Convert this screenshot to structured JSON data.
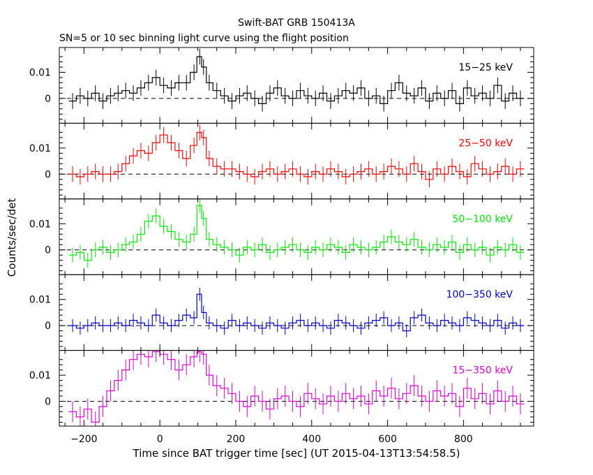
{
  "chart_data": {
    "type": "line",
    "title": "Swift-BAT GRB 150413A",
    "subtitle": "SN=5 or 10 sec binning light curve using the flight position",
    "xlabel": "Time since BAT trigger time [sec] (UT 2015-04-13T13:54:58.5)",
    "ylabel": "Counts/sec/det",
    "xlim": [
      -265,
      985
    ],
    "ylim": [
      -0.0095,
      0.0195
    ],
    "x_ticks": [
      "−200",
      "0",
      "200",
      "400",
      "600",
      "800"
    ],
    "x_tick_values": [
      -200,
      0,
      200,
      400,
      600,
      800
    ],
    "y_ticks": [
      "0",
      "0.01"
    ],
    "y_tick_values": [
      0,
      0.01
    ],
    "grid": false,
    "series": [
      {
        "name": "15−25 keV",
        "color": "#000000",
        "x": [
          -230,
          -210,
          -190,
          -170,
          -150,
          -130,
          -110,
          -90,
          -70,
          -50,
          -30,
          -10,
          10,
          30,
          50,
          70,
          90,
          105,
          115,
          130,
          150,
          170,
          190,
          210,
          230,
          250,
          270,
          290,
          310,
          330,
          350,
          370,
          390,
          410,
          430,
          450,
          470,
          490,
          510,
          530,
          550,
          570,
          590,
          610,
          630,
          650,
          670,
          690,
          710,
          730,
          750,
          770,
          790,
          810,
          830,
          850,
          870,
          890,
          910,
          930,
          950
        ],
        "y": [
          -0.001,
          0.001,
          0.0,
          0.002,
          -0.001,
          0.001,
          0.002,
          0.003,
          0.002,
          0.004,
          0.006,
          0.008,
          0.005,
          0.004,
          0.006,
          0.006,
          0.01,
          0.016,
          0.012,
          0.006,
          0.003,
          0.001,
          -0.001,
          0.001,
          0.002,
          0.0,
          -0.002,
          0.002,
          0.004,
          0.001,
          0.0,
          0.003,
          0.001,
          0.0,
          0.002,
          -0.001,
          0.001,
          0.003,
          0.002,
          0.004,
          0.0,
          0.001,
          -0.002,
          0.003,
          0.006,
          0.002,
          0.001,
          0.004,
          -0.001,
          0.002,
          0.0,
          0.003,
          -0.002,
          0.004,
          0.001,
          0.002,
          0.0,
          0.005,
          -0.001,
          0.002,
          0.0
        ],
        "err": 0.003
      },
      {
        "name": "25−50 keV",
        "color": "#ff0000",
        "x": [
          -230,
          -210,
          -190,
          -170,
          -150,
          -130,
          -110,
          -90,
          -70,
          -50,
          -30,
          -10,
          10,
          30,
          50,
          70,
          90,
          105,
          115,
          130,
          150,
          170,
          190,
          210,
          230,
          250,
          270,
          290,
          310,
          330,
          350,
          370,
          390,
          410,
          430,
          450,
          470,
          490,
          510,
          530,
          550,
          570,
          590,
          610,
          630,
          650,
          670,
          690,
          710,
          730,
          750,
          770,
          790,
          810,
          830,
          850,
          870,
          890,
          910,
          930,
          950
        ],
        "y": [
          0.0,
          -0.001,
          0.0,
          0.001,
          0.0,
          0.0,
          0.001,
          0.004,
          0.007,
          0.009,
          0.008,
          0.012,
          0.015,
          0.012,
          0.009,
          0.006,
          0.011,
          0.016,
          0.014,
          0.006,
          0.003,
          0.002,
          0.002,
          0.001,
          0.0,
          -0.001,
          0.001,
          0.002,
          0.0,
          0.001,
          0.002,
          0.0,
          -0.001,
          0.001,
          0.0,
          0.002,
          0.001,
          -0.001,
          0.0,
          0.001,
          0.002,
          0.0,
          0.001,
          0.003,
          0.002,
          0.0,
          0.004,
          0.001,
          -0.002,
          0.002,
          0.0,
          0.003,
          0.001,
          -0.001,
          0.004,
          0.002,
          0.0,
          0.001,
          0.003,
          0.0,
          0.002
        ],
        "err": 0.003
      },
      {
        "name": "50−100 keV",
        "color": "#00ee00",
        "x": [
          -230,
          -210,
          -190,
          -170,
          -150,
          -130,
          -110,
          -90,
          -70,
          -50,
          -30,
          -10,
          10,
          30,
          50,
          70,
          90,
          105,
          115,
          130,
          150,
          170,
          190,
          210,
          230,
          250,
          270,
          290,
          310,
          330,
          350,
          370,
          390,
          410,
          430,
          450,
          470,
          490,
          510,
          530,
          550,
          570,
          590,
          610,
          630,
          650,
          670,
          690,
          710,
          730,
          750,
          770,
          790,
          810,
          830,
          850,
          870,
          890,
          910,
          930,
          950
        ],
        "y": [
          -0.002,
          -0.001,
          -0.004,
          0.0,
          0.001,
          -0.001,
          0.0,
          0.002,
          0.003,
          0.006,
          0.011,
          0.013,
          0.009,
          0.007,
          0.004,
          0.003,
          0.006,
          0.017,
          0.012,
          0.004,
          0.002,
          0.001,
          0.0,
          -0.002,
          0.001,
          0.0,
          0.002,
          -0.001,
          0.0,
          0.001,
          0.002,
          0.0,
          -0.001,
          0.001,
          0.0,
          0.002,
          0.001,
          -0.001,
          0.002,
          0.001,
          0.0,
          0.001,
          0.003,
          0.005,
          0.003,
          0.002,
          0.004,
          0.001,
          0.0,
          0.002,
          0.001,
          0.003,
          -0.001,
          0.002,
          0.0,
          0.001,
          -0.002,
          0.001,
          0.0,
          0.002,
          -0.001
        ],
        "err": 0.0028
      },
      {
        "name": "100−350 keV",
        "color": "#0000cc",
        "x": [
          -230,
          -210,
          -190,
          -170,
          -150,
          -130,
          -110,
          -90,
          -70,
          -50,
          -30,
          -10,
          10,
          30,
          50,
          70,
          90,
          105,
          115,
          130,
          150,
          170,
          190,
          210,
          230,
          250,
          270,
          290,
          310,
          330,
          350,
          370,
          390,
          410,
          430,
          450,
          470,
          490,
          510,
          530,
          550,
          570,
          590,
          610,
          630,
          650,
          670,
          690,
          710,
          730,
          750,
          770,
          790,
          810,
          830,
          850,
          870,
          890,
          910,
          930,
          950
        ],
        "y": [
          0.0,
          -0.001,
          0.0,
          0.001,
          0.0,
          0.0,
          0.001,
          0.0,
          0.002,
          0.001,
          0.0,
          0.004,
          0.001,
          0.0,
          0.002,
          0.004,
          0.003,
          0.012,
          0.005,
          0.001,
          0.0,
          -0.001,
          0.002,
          0.0,
          0.001,
          0.0,
          -0.001,
          0.001,
          0.0,
          -0.001,
          0.001,
          0.002,
          0.0,
          0.001,
          0.0,
          -0.001,
          0.002,
          0.001,
          0.0,
          -0.001,
          0.001,
          0.002,
          0.003,
          0.0,
          0.001,
          -0.002,
          0.003,
          0.004,
          0.001,
          0.0,
          0.002,
          0.001,
          0.0,
          0.003,
          0.002,
          0.001,
          0.0,
          0.002,
          -0.001,
          0.001,
          0.0
        ],
        "err": 0.0025
      },
      {
        "name": "15−350 keV",
        "color": "#dd00dd",
        "x": [
          -230,
          -210,
          -190,
          -170,
          -150,
          -130,
          -110,
          -90,
          -70,
          -50,
          -30,
          -10,
          10,
          30,
          50,
          70,
          90,
          105,
          115,
          130,
          150,
          170,
          190,
          210,
          230,
          250,
          270,
          290,
          310,
          330,
          350,
          370,
          390,
          410,
          430,
          450,
          470,
          490,
          510,
          530,
          550,
          570,
          590,
          610,
          630,
          650,
          670,
          690,
          710,
          730,
          750,
          770,
          790,
          810,
          830,
          850,
          870,
          890,
          910,
          930,
          950
        ],
        "y": [
          -0.004,
          -0.006,
          -0.003,
          -0.008,
          -0.002,
          0.004,
          0.008,
          0.012,
          0.016,
          0.018,
          0.017,
          0.019,
          0.018,
          0.016,
          0.012,
          0.014,
          0.017,
          0.019,
          0.018,
          0.01,
          0.006,
          0.005,
          0.003,
          0.0,
          -0.002,
          0.002,
          0.0,
          -0.003,
          0.001,
          0.002,
          0.0,
          -0.002,
          0.003,
          0.001,
          -0.001,
          0.002,
          0.0,
          0.003,
          0.001,
          0.002,
          -0.001,
          0.004,
          0.002,
          0.005,
          0.001,
          0.003,
          0.006,
          0.002,
          0.0,
          0.004,
          0.002,
          0.003,
          -0.002,
          0.005,
          0.001,
          0.003,
          -0.001,
          0.004,
          0.0,
          0.002,
          -0.001
        ],
        "err": 0.004
      }
    ]
  }
}
